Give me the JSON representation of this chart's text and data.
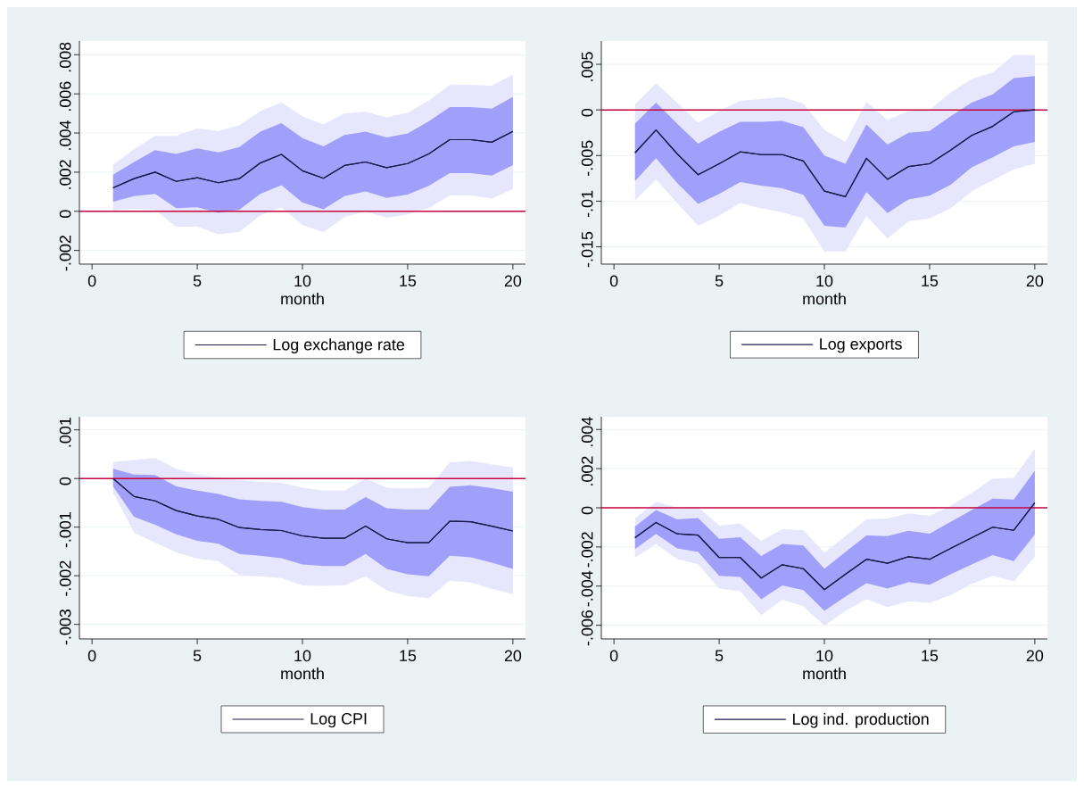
{
  "chart_data": [
    {
      "type": "line",
      "xlabel": "month",
      "x": [
        1,
        2,
        3,
        4,
        5,
        6,
        7,
        8,
        9,
        10,
        11,
        12,
        13,
        14,
        15,
        16,
        17,
        18,
        19,
        20
      ],
      "series": [
        {
          "color": "#1a1a4a",
          "values": [
            0.0012,
            0.00167,
            0.002,
            0.00153,
            0.00172,
            0.00146,
            0.00167,
            0.00247,
            0.00291,
            0.00207,
            0.00169,
            0.00234,
            0.00252,
            0.00223,
            0.00244,
            0.00293,
            0.00366,
            0.00366,
            0.00353,
            0.00408
          ],
          "lower": [
            5e-05,
            0.00013,
            7e-05,
            -0.00078,
            -0.00078,
            -0.00117,
            -0.00106,
            -0.0002,
            0.0002,
            -0.0007,
            -0.00106,
            -0.00029,
            0,
            -0.00033,
            -0.00016,
            0.00016,
            0.00081,
            0.00081,
            0.00065,
            0.00114
          ],
          "upper": [
            0.00239,
            0.00317,
            0.00385,
            0.00385,
            0.00423,
            0.00411,
            0.00439,
            0.00512,
            0.00556,
            0.00485,
            0.00444,
            0.00501,
            0.00509,
            0.0048,
            0.00504,
            0.00566,
            0.00646,
            0.00647,
            0.00642,
            0.00699
          ]
        },
        {
          "name": "Log exchange rate",
          "color": "#1a1a4a",
          "values": [
            0.0012,
            0.00167,
            0.002,
            0.00153,
            0.00172,
            0.00146,
            0.00167,
            0.00247,
            0.00291,
            0.00207,
            0.00169,
            0.00234,
            0.00252,
            0.00223,
            0.00244,
            0.00293,
            0.00366,
            0.00366,
            0.00353,
            0.00408
          ],
          "lower": [
            0.00049,
            0.00078,
            0.00089,
            0.00016,
            0.00021,
            -8e-05,
            8e-05,
            0.00089,
            0.00133,
            0.00044,
            0.0001,
            0.00078,
            0.00102,
            0.00068,
            0.00086,
            0.0013,
            0.00195,
            0.00195,
            0.00182,
            0.00236
          ],
          "upper": [
            0.00187,
            0.00252,
            0.00312,
            0.00293,
            0.00322,
            0.00301,
            0.00328,
            0.00407,
            0.0045,
            0.00374,
            0.00332,
            0.0039,
            0.00407,
            0.00377,
            0.00398,
            0.00459,
            0.00532,
            0.00532,
            0.00524,
            0.00585
          ]
        }
      ],
      "xlim": [
        -0.6,
        20.6
      ],
      "ylim": [
        -0.0027,
        0.0087
      ],
      "xticks": [
        0,
        5,
        10,
        15,
        20
      ],
      "yticks": [
        {
          "value": -0.002,
          "label": "-.002"
        },
        {
          "value": 0,
          "label": "0"
        },
        {
          "value": 0.002,
          "label": ".002"
        },
        {
          "value": 0.004,
          "label": ".004"
        },
        {
          "value": 0.006,
          "label": ".006"
        },
        {
          "value": 0.008,
          "label": ".008"
        }
      ],
      "grid": "y",
      "legend": "bottom",
      "ref_lines": [
        {
          "axis": "y",
          "value": 0,
          "color": "#c8003c"
        }
      ]
    },
    {
      "type": "line",
      "xlabel": "month",
      "x": [
        1,
        2,
        3,
        4,
        5,
        6,
        7,
        8,
        9,
        10,
        11,
        12,
        13,
        14,
        15,
        16,
        17,
        18,
        19,
        20
      ],
      "series": [
        {
          "color": "#1a1a4a",
          "values": [
            -0.0047,
            -0.0022,
            -0.0048,
            -0.0071,
            -0.0059,
            -0.0046,
            -0.0049,
            -0.0049,
            -0.0056,
            -0.0089,
            -0.0095,
            -0.0053,
            -0.0076,
            -0.0062,
            -0.0059,
            -0.0044,
            -0.0028,
            -0.0018,
            -0.0002,
            0
          ],
          "lower": [
            -0.0099,
            -0.0076,
            -0.0102,
            -0.0127,
            -0.0116,
            -0.0102,
            -0.0108,
            -0.0112,
            -0.0119,
            -0.0155,
            -0.0155,
            -0.0116,
            -0.0141,
            -0.0122,
            -0.0119,
            -0.0108,
            -0.0089,
            -0.0077,
            -0.0065,
            -0.0059
          ],
          "upper": [
            0.0006,
            0.0029,
            0.0008,
            -0.0014,
            -0.0001,
            0.001,
            0.0012,
            0.0014,
            0.0007,
            -0.0022,
            -0.0035,
            0.0009,
            -0.0011,
            -0.0001,
            0,
            0.0019,
            0.0034,
            0.0041,
            0.006,
            0.006
          ]
        },
        {
          "name": "Log exports",
          "color": "#1a1a4a",
          "values": [
            -0.0047,
            -0.0022,
            -0.0048,
            -0.0071,
            -0.0059,
            -0.0046,
            -0.0049,
            -0.0049,
            -0.0056,
            -0.0089,
            -0.0095,
            -0.0053,
            -0.0076,
            -0.0062,
            -0.0059,
            -0.0044,
            -0.0028,
            -0.0018,
            -0.0002,
            0
          ],
          "lower": [
            -0.0078,
            -0.0053,
            -0.008,
            -0.0103,
            -0.0092,
            -0.0079,
            -0.0083,
            -0.0086,
            -0.0093,
            -0.0127,
            -0.0129,
            -0.009,
            -0.0113,
            -0.0098,
            -0.0094,
            -0.0082,
            -0.0063,
            -0.0052,
            -0.004,
            -0.0035
          ],
          "upper": [
            -0.0015,
            0.0008,
            -0.0015,
            -0.0037,
            -0.0024,
            -0.0013,
            -0.0013,
            -0.0012,
            -0.0019,
            -0.005,
            -0.0059,
            -0.0016,
            -0.0038,
            -0.0025,
            -0.0023,
            -0.0007,
            0.0008,
            0.0017,
            0.0035,
            0.0037
          ]
        }
      ],
      "xlim": [
        -0.6,
        20.6
      ],
      "ylim": [
        -0.0169,
        0.00755
      ],
      "xticks": [
        0,
        5,
        10,
        15,
        20
      ],
      "yticks": [
        {
          "value": -0.015,
          "label": "-.015"
        },
        {
          "value": -0.01,
          "label": "-.01"
        },
        {
          "value": -0.005,
          "label": "-.005"
        },
        {
          "value": 0,
          "label": "0"
        },
        {
          "value": 0.005,
          "label": ".005"
        }
      ],
      "grid": "y",
      "legend": "bottom",
      "ref_lines": [
        {
          "axis": "y",
          "value": 0,
          "color": "#c8003c"
        }
      ]
    },
    {
      "type": "line",
      "xlabel": "month",
      "x": [
        1,
        2,
        3,
        4,
        5,
        6,
        7,
        8,
        9,
        10,
        11,
        12,
        13,
        14,
        15,
        16,
        17,
        18,
        19,
        20
      ],
      "series": [
        {
          "color": "#1a1a4a",
          "values": [
            0,
            -0.00037,
            -0.00046,
            -0.00066,
            -0.00077,
            -0.00084,
            -0.00101,
            -0.00105,
            -0.00107,
            -0.00118,
            -0.00123,
            -0.00123,
            -0.00098,
            -0.00124,
            -0.00132,
            -0.00132,
            -0.00088,
            -0.00089,
            -0.00098,
            -0.00108
          ],
          "lower": [
            -0.00029,
            -0.00111,
            -0.00132,
            -0.00152,
            -0.00165,
            -0.0017,
            -0.00199,
            -0.00201,
            -0.00205,
            -0.0022,
            -0.00221,
            -0.0022,
            -0.00201,
            -0.0023,
            -0.00242,
            -0.00246,
            -0.0021,
            -0.00214,
            -0.00227,
            -0.00238
          ],
          "upper": [
            0.00034,
            0.00038,
            0.00042,
            0.0002,
            8e-05,
            2e-05,
            -3e-05,
            -7e-05,
            -9e-05,
            -0.00019,
            -0.00025,
            -0.00025,
            0,
            -0.00019,
            -0.00021,
            -0.00019,
            0.00033,
            0.00036,
            0.00029,
            0.00023
          ]
        },
        {
          "name": "Log CPI",
          "color": "#1a1a4a",
          "values": [
            0,
            -0.00037,
            -0.00046,
            -0.00066,
            -0.00077,
            -0.00084,
            -0.00101,
            -0.00105,
            -0.00107,
            -0.00118,
            -0.00123,
            -0.00123,
            -0.00098,
            -0.00124,
            -0.00132,
            -0.00132,
            -0.00088,
            -0.00089,
            -0.00098,
            -0.00108
          ],
          "lower": [
            -0.00016,
            -0.00079,
            -0.00095,
            -0.00115,
            -0.00128,
            -0.00134,
            -0.00155,
            -0.00159,
            -0.00164,
            -0.00177,
            -0.0018,
            -0.0018,
            -0.00155,
            -0.00186,
            -0.00197,
            -0.00201,
            -0.00159,
            -0.00162,
            -0.00173,
            -0.00186
          ],
          "upper": [
            0.0002,
            8e-05,
            7e-05,
            -0.00016,
            -0.00025,
            -0.00032,
            -0.00043,
            -0.00046,
            -0.00048,
            -0.00059,
            -0.00064,
            -0.00064,
            -0.00038,
            -0.00061,
            -0.00064,
            -0.00064,
            -0.00017,
            -0.00014,
            -0.0002,
            -0.00027
          ]
        }
      ],
      "xlim": [
        -0.6,
        20.6
      ],
      "ylim": [
        -0.0033,
        0.00127
      ],
      "xticks": [
        0,
        5,
        10,
        15,
        20
      ],
      "yticks": [
        {
          "value": -0.003,
          "label": "-.003"
        },
        {
          "value": -0.002,
          "label": "-.002"
        },
        {
          "value": -0.001,
          "label": "-.001"
        },
        {
          "value": 0,
          "label": "0"
        },
        {
          "value": 0.001,
          "label": ".001"
        }
      ],
      "grid": "y",
      "legend": "bottom",
      "ref_lines": [
        {
          "axis": "y",
          "value": 0,
          "color": "#c8003c"
        }
      ]
    },
    {
      "type": "line",
      "xlabel": "month",
      "x": [
        1,
        2,
        3,
        4,
        5,
        6,
        7,
        8,
        9,
        10,
        11,
        12,
        13,
        14,
        15,
        16,
        17,
        18,
        19,
        20
      ],
      "series": [
        {
          "color": "#1a1a4a",
          "values": [
            -0.00153,
            -0.00075,
            -0.00133,
            -0.0014,
            -0.00254,
            -0.00254,
            -0.00359,
            -0.00291,
            -0.00311,
            -0.00418,
            -0.0034,
            -0.00263,
            -0.00283,
            -0.0025,
            -0.00263,
            -0.00207,
            -0.00153,
            -0.00099,
            -0.00115,
            0.00026
          ],
          "lower": [
            -0.00255,
            -0.00185,
            -0.00262,
            -0.00288,
            -0.00413,
            -0.00426,
            -0.00548,
            -0.0047,
            -0.00502,
            -0.00603,
            -0.00527,
            -0.00467,
            -0.00507,
            -0.00478,
            -0.00486,
            -0.00446,
            -0.00389,
            -0.00348,
            -0.00376,
            -0.0025
          ],
          "upper": [
            -0.00055,
            0.00031,
            0,
            5e-05,
            -0.00091,
            -0.0008,
            -0.00169,
            -0.00109,
            -0.00115,
            -0.00229,
            -0.00145,
            -0.00059,
            -0.00055,
            -0.00028,
            -0.00041,
            0.0001,
            0.00075,
            0.00148,
            0.00153,
            0.00302
          ]
        },
        {
          "name": "Log ind. production",
          "color": "#1a1a4a",
          "values": [
            -0.00153,
            -0.00075,
            -0.00133,
            -0.0014,
            -0.00254,
            -0.00254,
            -0.00359,
            -0.00291,
            -0.00311,
            -0.00418,
            -0.0034,
            -0.00263,
            -0.00283,
            -0.0025,
            -0.00263,
            -0.00207,
            -0.00153,
            -0.00099,
            -0.00115,
            0.00026
          ],
          "lower": [
            -0.00211,
            -0.00133,
            -0.00207,
            -0.00226,
            -0.00348,
            -0.00353,
            -0.00467,
            -0.00397,
            -0.00421,
            -0.00527,
            -0.00454,
            -0.00385,
            -0.00413,
            -0.0038,
            -0.00393,
            -0.0034,
            -0.0029,
            -0.00242,
            -0.00272,
            -0.00137
          ],
          "upper": [
            -0.00096,
            -0.00011,
            -0.00059,
            -0.00052,
            -0.00158,
            -0.0015,
            -0.00246,
            -0.00185,
            -0.00193,
            -0.00311,
            -0.00226,
            -0.00141,
            -0.00145,
            -0.00117,
            -0.00132,
            -0.00072,
            -0.00011,
            0.00047,
            0.00042,
            0.00189
          ]
        }
      ],
      "xlim": [
        -0.6,
        20.6
      ],
      "ylim": [
        -0.0067,
        0.00465
      ],
      "xticks": [
        0,
        5,
        10,
        15,
        20
      ],
      "yticks": [
        {
          "value": -0.006,
          "label": "-.006"
        },
        {
          "value": -0.004,
          "label": "-.004"
        },
        {
          "value": -0.002,
          "label": "-.002"
        },
        {
          "value": 0,
          "label": "0"
        },
        {
          "value": 0.002,
          "label": ".002"
        },
        {
          "value": 0.004,
          "label": ".004"
        }
      ],
      "grid": "y",
      "legend": "bottom",
      "ref_lines": [
        {
          "axis": "y",
          "value": 0,
          "color": "#c8003c"
        }
      ]
    }
  ]
}
